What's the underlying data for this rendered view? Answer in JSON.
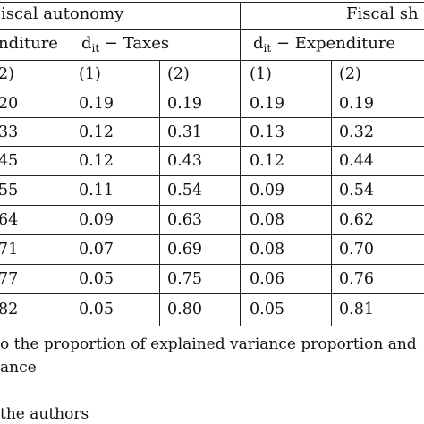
{
  "header": {
    "group_left": "iscal autonomy",
    "group_right": "Fiscal sh",
    "col_left_partial": "nditure",
    "col_taxes_prefix": "d",
    "col_taxes_sub": "it",
    "col_taxes_suffix": " − Taxes",
    "col_exp_prefix": "d",
    "col_exp_sub": "it",
    "col_exp_suffix": " − Expenditure",
    "num_left_partial": "2)",
    "num_1a": "(1)",
    "num_2a": "(2)",
    "num_1b": "(1)",
    "num_2b": "(2)"
  },
  "rows": [
    {
      "c0": "20",
      "c1": "0.19",
      "c2": "0.19",
      "c3": "0.19",
      "c4": "0.19"
    },
    {
      "c0": "33",
      "c1": "0.12",
      "c2": "0.31",
      "c3": "0.13",
      "c4": "0.32"
    },
    {
      "c0": "45",
      "c1": "0.12",
      "c2": "0.43",
      "c3": "0.12",
      "c4": "0.44"
    },
    {
      "c0": "55",
      "c1": "0.11",
      "c2": "0.54",
      "c3": "0.09",
      "c4": "0.54"
    },
    {
      "c0": "64",
      "c1": "0.09",
      "c2": "0.63",
      "c3": "0.08",
      "c4": "0.62"
    },
    {
      "c0": "71",
      "c1": "0.07",
      "c2": "0.69",
      "c3": "0.08",
      "c4": "0.70"
    },
    {
      "c0": "77",
      "c1": "0.05",
      "c2": "0.75",
      "c3": "0.06",
      "c4": "0.76"
    },
    {
      "c0": "82",
      "c1": "0.05",
      "c2": "0.80",
      "c3": "0.05",
      "c4": "0.81"
    }
  ],
  "notes": {
    "line1": "o the proportion of explained variance proportion and",
    "line2": "ance",
    "source": "the authors"
  }
}
